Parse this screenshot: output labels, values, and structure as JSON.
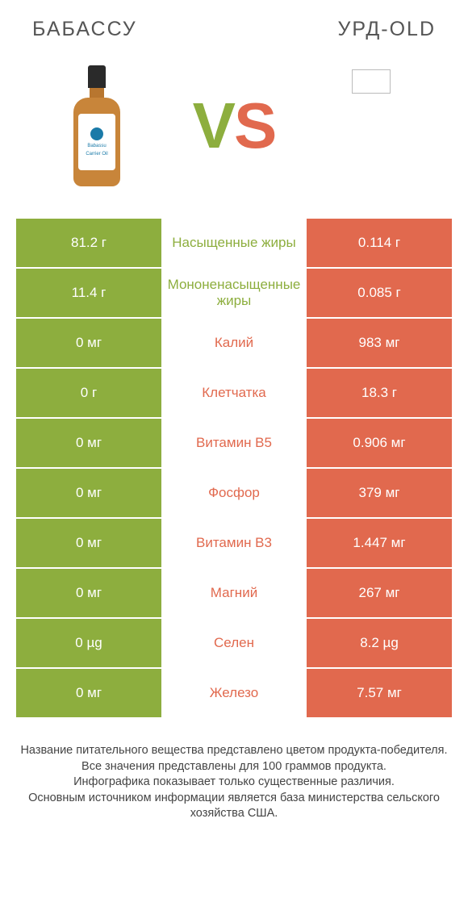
{
  "header": {
    "left": "БАБАССУ",
    "right": "УРД-OLD"
  },
  "vs": {
    "v": "V",
    "s": "S"
  },
  "bottle_label": {
    "line1": "Babassu",
    "line2": "Carrier Oil"
  },
  "colors": {
    "green": "#8dae3e",
    "orange": "#e1694e"
  },
  "rows": [
    {
      "left": "81.2 г",
      "label": "Насыщенные жиры",
      "right": "0.114 г",
      "winner": "left"
    },
    {
      "left": "11.4 г",
      "label": "Мононенасыщенные жиры",
      "right": "0.085 г",
      "winner": "left"
    },
    {
      "left": "0 мг",
      "label": "Калий",
      "right": "983 мг",
      "winner": "right"
    },
    {
      "left": "0 г",
      "label": "Клетчатка",
      "right": "18.3 г",
      "winner": "right"
    },
    {
      "left": "0 мг",
      "label": "Витамин B5",
      "right": "0.906 мг",
      "winner": "right"
    },
    {
      "left": "0 мг",
      "label": "Фосфор",
      "right": "379 мг",
      "winner": "right"
    },
    {
      "left": "0 мг",
      "label": "Витамин B3",
      "right": "1.447 мг",
      "winner": "right"
    },
    {
      "left": "0 мг",
      "label": "Магний",
      "right": "267 мг",
      "winner": "right"
    },
    {
      "left": "0 µg",
      "label": "Селен",
      "right": "8.2 µg",
      "winner": "right"
    },
    {
      "left": "0 мг",
      "label": "Железо",
      "right": "7.57 мг",
      "winner": "right"
    }
  ],
  "footer": {
    "l1": "Название питательного вещества представлено цветом продукта-победителя.",
    "l2": "Все значения представлены для 100 граммов продукта.",
    "l3": "Инфографика показывает только существенные различия.",
    "l4": "Основным источником информации является база министерства сельского хозяйства США."
  }
}
